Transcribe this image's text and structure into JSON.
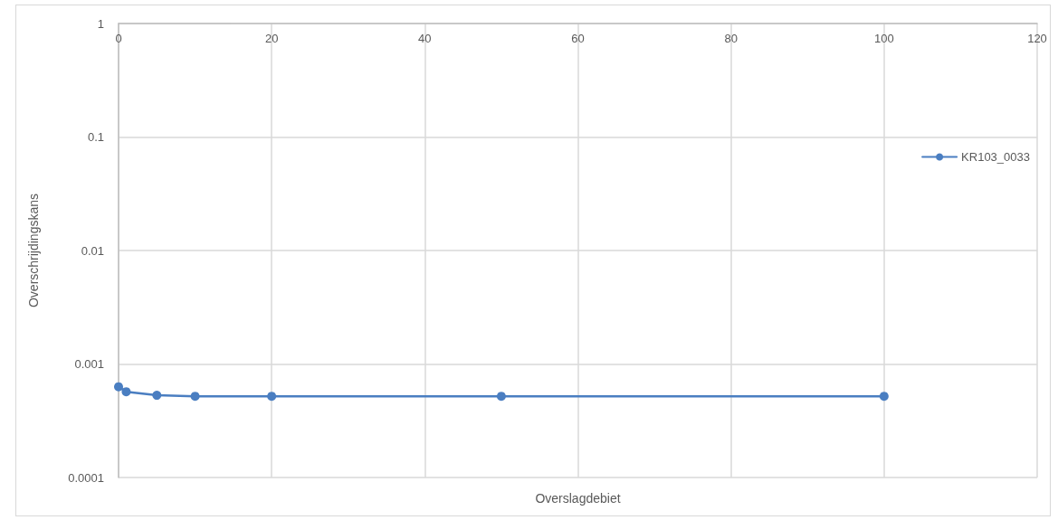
{
  "chart_data": {
    "type": "line",
    "xlabel": "Overslagdebiet",
    "ylabel": "Overschrijdingskans",
    "x": [
      0,
      1,
      5,
      10,
      20,
      50,
      100
    ],
    "series": [
      {
        "name": "KR103_0033",
        "color": "#4a7ec1",
        "values": [
          0.00063,
          0.00057,
          0.00053,
          0.00052,
          0.00052,
          0.00052,
          0.00052
        ]
      }
    ],
    "xlim": [
      0,
      120
    ],
    "xticks": [
      0,
      20,
      40,
      60,
      80,
      100,
      120
    ],
    "ylim": [
      0.0001,
      1
    ],
    "yticks": [
      0.0001,
      0.001,
      0.01,
      0.1,
      1
    ],
    "log": "y",
    "grid": true,
    "legend": "right",
    "marker": "circle",
    "line_style": "solid"
  }
}
